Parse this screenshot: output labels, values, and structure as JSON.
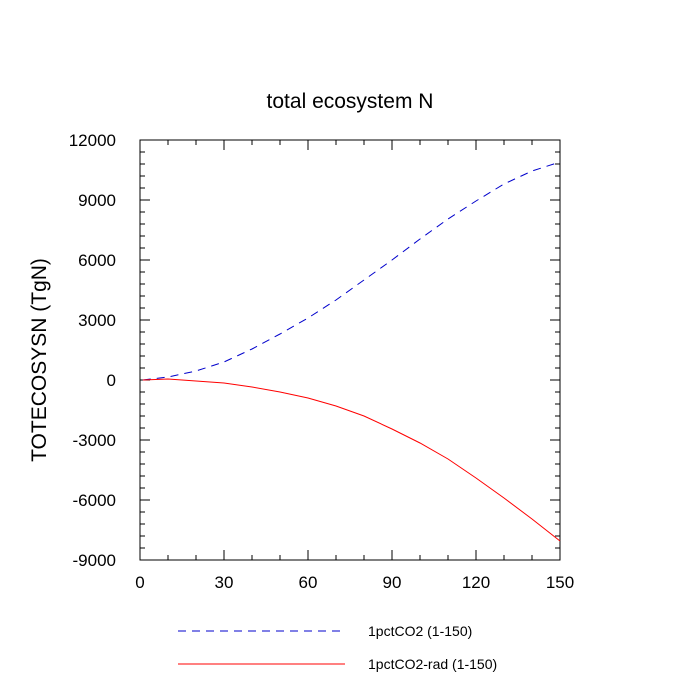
{
  "chart_data": {
    "type": "line",
    "title": "total ecosystem N",
    "xlabel": "",
    "ylabel": "TOTECOSYSN  (TgN)",
    "xlim": [
      0,
      150
    ],
    "ylim": [
      -9000,
      12000
    ],
    "xticks": [
      0,
      30,
      60,
      90,
      120,
      150
    ],
    "xtick_labels": [
      "0",
      "30",
      "60",
      "90",
      "120",
      "150"
    ],
    "yticks": [
      -9000,
      -6000,
      -3000,
      0,
      3000,
      6000,
      9000,
      12000
    ],
    "ytick_labels": [
      "-9000",
      "-6000",
      "-3000",
      "0",
      "3000",
      "6000",
      "9000",
      "12000"
    ],
    "grid": false,
    "legend_position": "bottom",
    "series": [
      {
        "name": "1pctCO2 (1-150)",
        "color": "#0000cc",
        "style": "dashed",
        "x": [
          1,
          10,
          20,
          30,
          40,
          50,
          60,
          70,
          80,
          90,
          100,
          110,
          120,
          130,
          140,
          150
        ],
        "y": [
          0,
          150,
          450,
          900,
          1550,
          2300,
          3100,
          4000,
          5000,
          6000,
          7050,
          8050,
          8950,
          9800,
          10450,
          10900
        ]
      },
      {
        "name": "1pctCO2-rad (1-150)",
        "color": "#ff0000",
        "style": "solid",
        "x": [
          1,
          10,
          20,
          30,
          40,
          50,
          60,
          70,
          80,
          90,
          100,
          110,
          120,
          130,
          140,
          150
        ],
        "y": [
          0,
          50,
          -50,
          -150,
          -350,
          -600,
          -900,
          -1300,
          -1800,
          -2450,
          -3150,
          -3950,
          -4900,
          -5900,
          -6950,
          -8050
        ]
      }
    ]
  }
}
